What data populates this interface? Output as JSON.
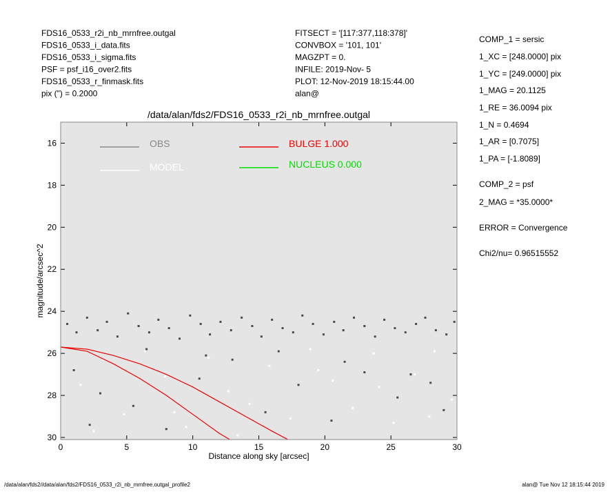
{
  "header_left": [
    "FDS16_0533_r2i_nb_mrnfree.outgal",
    "FDS16_0533_i_data.fits",
    "FDS16_0533_i_sigma.fits",
    "PSF     = psf_i16_over2.fits",
    "FDS16_0533_r_finmask.fits",
    "pix (\") =  0.2000"
  ],
  "header_mid": [
    "FITSECT = '[117:377,118:378]'",
    "CONVBOX = '101, 101'",
    "MAGZPT  =              0.",
    "INFILE: 2019-Nov- 5",
    "PLOT: 12-Nov-2019 18:15:44.00",
    "alan@"
  ],
  "side_panel": [
    "COMP_1  = sersic",
    "1_XC    = [248.0000] pix",
    "1_YC    = [249.0000] pix",
    "1_MAG   = 20.1125",
    "1_RE    = 36.0094 pix",
    "1_N     = 0.4694",
    "1_AR    = [0.7075]",
    "1_PA    = [-1.8089]",
    "COMP_2  = psf",
    "2_MAG   = *35.0000*",
    "ERROR   = Convergence",
    "Chi2/nu=      0.96515552"
  ],
  "footer_left": "/data/alan/fds2//data/alan/fds2/FDS16_0533_r2i_nb_mrnfree.outgal_profile2",
  "footer_right": "alan@  Tue Nov 12 18:15:44 2019",
  "chart_data": {
    "type": "scatter",
    "title": "/data/alan/fds2/FDS16_0533_r2i_nb_mrnfree.outgal",
    "x_label": "Distance along sky [arcsec]",
    "y_label": "magnitude/arcsec^2",
    "xlim": [
      0,
      30
    ],
    "ylim": [
      15,
      30.1
    ],
    "y_inverted": true,
    "xticks": [
      0,
      5,
      10,
      15,
      20,
      25,
      30
    ],
    "yticks": [
      16,
      18,
      20,
      22,
      24,
      26,
      28,
      30
    ],
    "series": [
      {
        "name": "OBS",
        "type": "scatter",
        "color": "#4a4a4a",
        "x": [
          0.5,
          1.2,
          2.0,
          2.8,
          3.5,
          4.3,
          5.1,
          5.9,
          6.7,
          7.4,
          8.2,
          9.0,
          9.8,
          10.6,
          11.3,
          12.1,
          12.9,
          13.7,
          14.5,
          15.2,
          16.0,
          16.8,
          17.6,
          18.3,
          19.1,
          19.9,
          20.7,
          21.4,
          22.2,
          23.0,
          23.8,
          24.5,
          25.3,
          26.1,
          26.9,
          27.6,
          28.4,
          29.2,
          29.8,
          1.0,
          3.0,
          5.5,
          8.0,
          10.5,
          13.0,
          15.5,
          18.0,
          20.5,
          23.0,
          25.5,
          28.0,
          2.2,
          6.5,
          11.0,
          16.5,
          21.5,
          26.5,
          29.0
        ],
        "values": [
          24.6,
          25.0,
          24.3,
          24.9,
          24.5,
          25.2,
          24.1,
          24.7,
          25.0,
          24.4,
          24.8,
          25.3,
          24.2,
          24.6,
          25.1,
          24.5,
          24.9,
          24.3,
          24.7,
          25.2,
          24.4,
          24.8,
          25.0,
          24.2,
          24.6,
          25.1,
          24.5,
          24.9,
          24.3,
          24.7,
          25.2,
          24.4,
          24.8,
          25.0,
          24.6,
          24.3,
          24.9,
          25.1,
          24.5,
          26.8,
          27.9,
          28.5,
          29.6,
          27.2,
          26.3,
          28.8,
          27.5,
          29.2,
          26.9,
          28.1,
          27.4,
          29.4,
          25.8,
          26.1,
          25.9,
          26.4,
          27.0,
          28.7
        ]
      },
      {
        "name": "MODEL",
        "type": "scatter",
        "color": "#ffffff",
        "x": [
          1.5,
          3.2,
          4.8,
          6.4,
          7.9,
          9.5,
          11.2,
          12.7,
          14.3,
          15.8,
          17.4,
          18.9,
          20.6,
          22.1,
          23.7,
          25.2,
          26.8,
          28.3,
          29.6,
          2.5,
          8.6,
          13.4,
          19.5,
          24.1,
          27.9
        ],
        "values": [
          27.5,
          26.3,
          28.9,
          25.9,
          27.1,
          29.5,
          26.2,
          27.8,
          28.4,
          26.6,
          29.1,
          25.8,
          27.3,
          28.6,
          26.0,
          29.3,
          27.0,
          25.9,
          28.2,
          29.7,
          28.8,
          29.9,
          26.8,
          27.6,
          29.0
        ]
      },
      {
        "name": "BULGE  1.000",
        "type": "line",
        "color": "#ee0000",
        "x": [
          0,
          2,
          4,
          6,
          8,
          10,
          12,
          14,
          16,
          17.2
        ],
        "values": [
          25.7,
          25.8,
          26.1,
          26.5,
          27.0,
          27.6,
          28.3,
          29.0,
          29.7,
          30.1
        ]
      },
      {
        "name": "BULGE  1.000",
        "type": "line",
        "color": "#ee0000",
        "x": [
          0,
          2,
          4,
          6,
          8,
          10,
          12,
          12.8
        ],
        "values": [
          25.7,
          25.9,
          26.5,
          27.2,
          28.0,
          28.9,
          29.8,
          30.1
        ]
      },
      {
        "name": "NUCLEUS  0.000",
        "type": "legend",
        "color": "#00dd00"
      }
    ]
  }
}
